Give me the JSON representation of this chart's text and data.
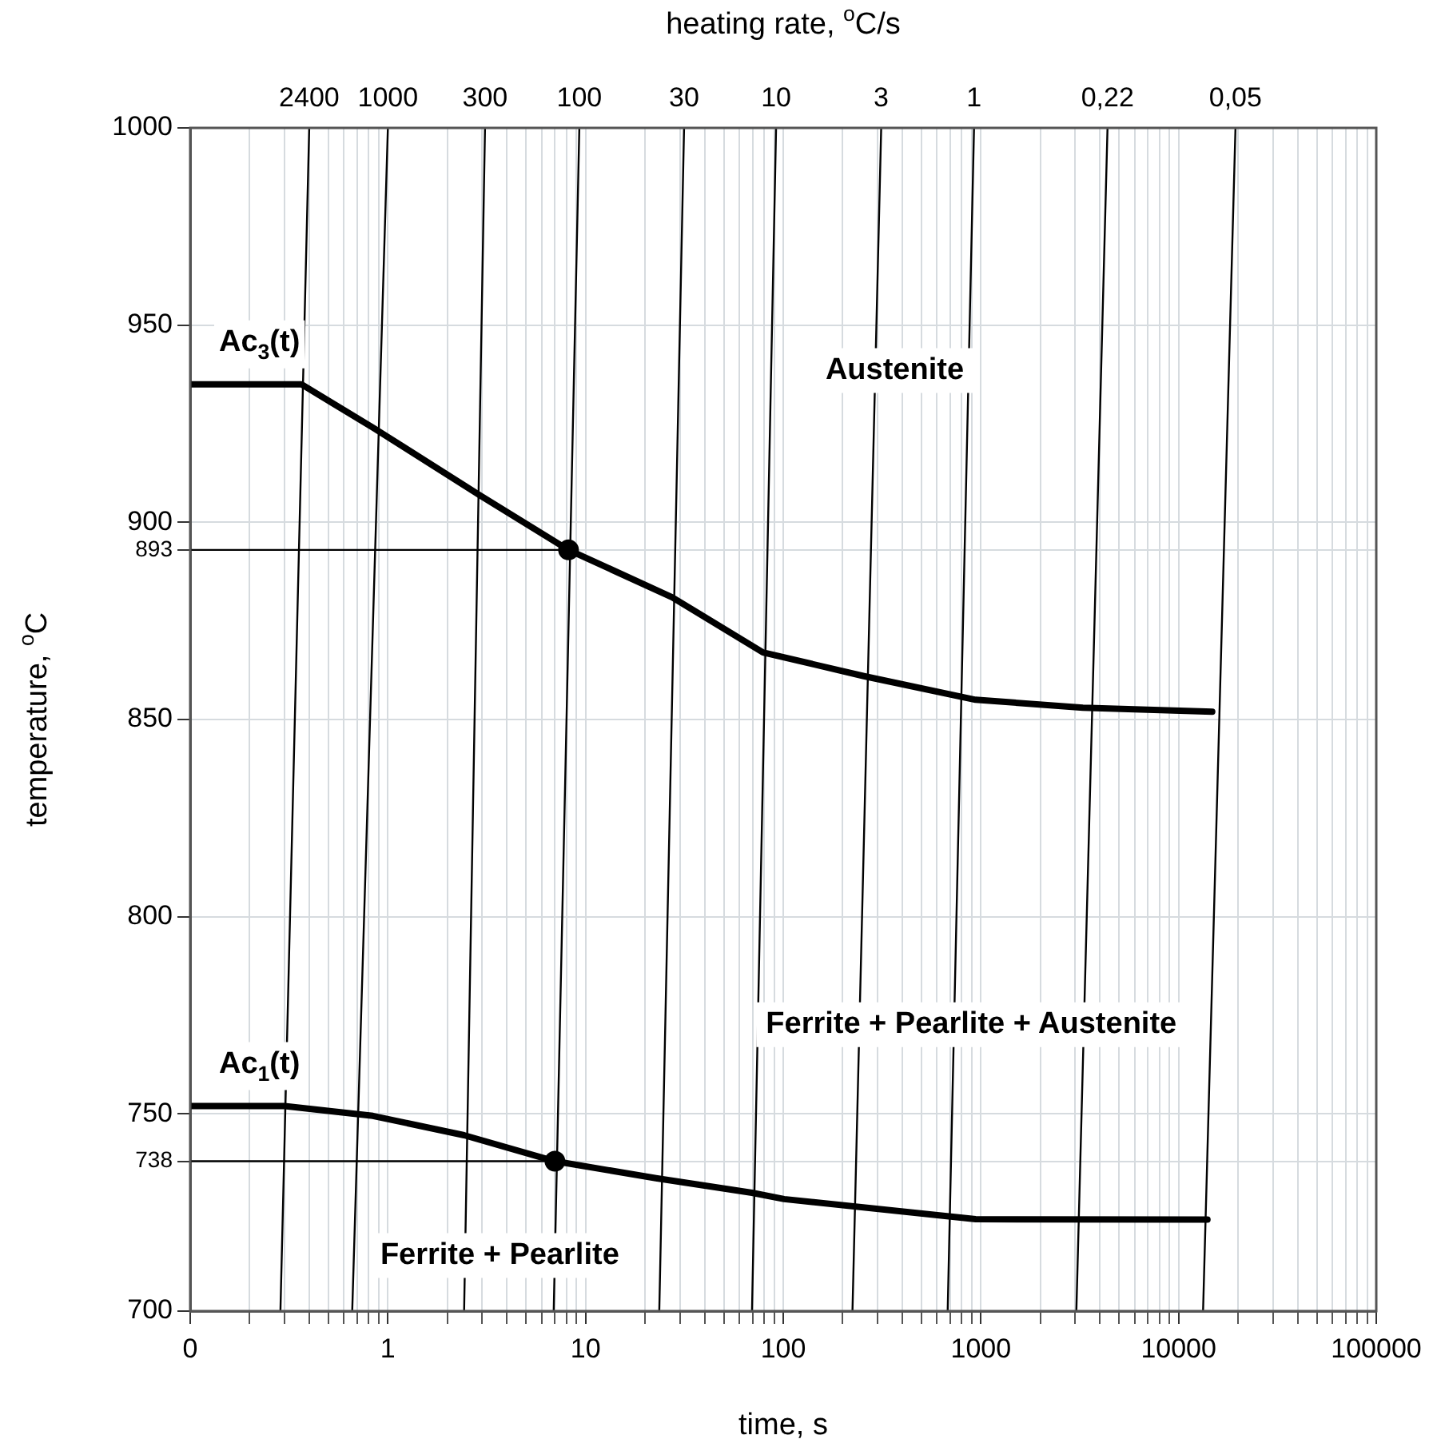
{
  "chart_data": {
    "type": "line",
    "xlabel": "time, s",
    "ylabel": "temperature, $^{o}$C",
    "log": "x",
    "grid": true,
    "legend": false,
    "marker": "none",
    "line_style": "solid",
    "xlim": [
      0.1,
      100000
    ],
    "ylim": [
      700,
      1000
    ],
    "xticks": [
      {
        "value": 0.1,
        "label": "0"
      },
      {
        "value": 0.2,
        "label": null
      },
      {
        "value": 0.3,
        "label": null
      },
      {
        "value": 0.4,
        "label": null
      },
      {
        "value": 0.5,
        "label": null
      },
      {
        "value": 0.6,
        "label": null
      },
      {
        "value": 0.7,
        "label": null
      },
      {
        "value": 0.8,
        "label": null
      },
      {
        "value": 0.9,
        "label": null
      },
      1,
      {
        "value": 2,
        "label": null
      },
      {
        "value": 3,
        "label": null
      },
      {
        "value": 4,
        "label": null
      },
      {
        "value": 5,
        "label": null
      },
      {
        "value": 6,
        "label": null
      },
      {
        "value": 7,
        "label": null
      },
      {
        "value": 8,
        "label": null
      },
      {
        "value": 9,
        "label": null
      },
      10,
      {
        "value": 20,
        "label": null
      },
      {
        "value": 30,
        "label": null
      },
      {
        "value": 40,
        "label": null
      },
      {
        "value": 50,
        "label": null
      },
      {
        "value": 60,
        "label": null
      },
      {
        "value": 70,
        "label": null
      },
      {
        "value": 80,
        "label": null
      },
      {
        "value": 90,
        "label": null
      },
      100,
      {
        "value": 200,
        "label": null
      },
      {
        "value": 300,
        "label": null
      },
      {
        "value": 400,
        "label": null
      },
      {
        "value": 500,
        "label": null
      },
      {
        "value": 600,
        "label": null
      },
      {
        "value": 700,
        "label": null
      },
      {
        "value": 800,
        "label": null
      },
      {
        "value": 900,
        "label": null
      },
      1000,
      {
        "value": 2000,
        "label": null
      },
      {
        "value": 3000,
        "label": null
      },
      {
        "value": 4000,
        "label": null
      },
      {
        "value": 5000,
        "label": null
      },
      {
        "value": 6000,
        "label": null
      },
      {
        "value": 7000,
        "label": null
      },
      {
        "value": 8000,
        "label": null
      },
      {
        "value": 9000,
        "label": null
      },
      10000,
      {
        "value": 20000,
        "label": null
      },
      {
        "value": 30000,
        "label": null
      },
      {
        "value": 40000,
        "label": null
      },
      {
        "value": 50000,
        "label": null
      },
      {
        "value": 60000,
        "label": null
      },
      {
        "value": 70000,
        "label": null
      },
      {
        "value": 80000,
        "label": null
      },
      {
        "value": 90000,
        "label": null
      },
      100000
    ],
    "yticks": [
      700,
      738,
      750,
      800,
      850,
      893,
      900,
      950,
      1000
    ],
    "series": [
      {
        "color": "#000000",
        "x": [
          0.286,
          0.4
        ],
        "values": [
          700,
          1000
        ]
      },
      {
        "color": "#000000",
        "x": [
          0.66,
          1.0
        ],
        "values": [
          700,
          1000
        ]
      },
      {
        "color": "#000000",
        "x": [
          2.43,
          3.1
        ],
        "values": [
          700,
          1000
        ]
      },
      {
        "color": "#000000",
        "x": [
          6.9,
          9.3
        ],
        "values": [
          700,
          1000
        ]
      },
      {
        "color": "#000000",
        "x": [
          23.6,
          31.5
        ],
        "values": [
          700,
          1000
        ]
      },
      {
        "color": "#000000",
        "x": [
          69.5,
          92
        ],
        "values": [
          700,
          1000
        ]
      },
      {
        "color": "#000000",
        "x": [
          224,
          313
        ],
        "values": [
          700,
          1000
        ]
      },
      {
        "color": "#000000",
        "x": [
          679,
          923
        ],
        "values": [
          700,
          1000
        ]
      },
      {
        "color": "#000000",
        "x": [
          3040,
          4370
        ],
        "values": [
          700,
          1000
        ]
      },
      {
        "color": "#000000",
        "x": [
          13300,
          19400
        ],
        "values": [
          700,
          1000
        ]
      },
      {
        "color": "#000000",
        "x": [
          0.1,
          8.2
        ],
        "values": [
          893,
          893
        ]
      },
      {
        "color": "#000000",
        "x": [
          0.1,
          7.0
        ],
        "values": [
          738,
          738
        ]
      },
      {
        "type": "line",
        "name": "Ac$_{3}$(t)",
        "color": "#000000",
        "x": [
          0.1,
          0.365,
          0.84,
          2.89,
          8.2,
          27.4,
          79,
          256,
          940,
          3280,
          14800
        ],
        "values": [
          935,
          935,
          924,
          907,
          893,
          881,
          867,
          861,
          855,
          853,
          852
        ]
      },
      {
        "type": "line",
        "name": "Ac$_{1}$(t)",
        "color": "#000000",
        "x": [
          0.1,
          0.3,
          0.84,
          2.43,
          7.0,
          22.7,
          69.5,
          101,
          940,
          14000
        ],
        "values": [
          752,
          752,
          749.5,
          744.6,
          738,
          733.7,
          730,
          728.4,
          723.3,
          723.2
        ]
      },
      {
        "type": "scatter",
        "marker": "circle",
        "color": "#000000",
        "x": [
          8.2,
          7.0
        ],
        "values": [
          893,
          738
        ]
      }
    ],
    "annotations": [
      "heating rate, $^{o}$C/s",
      "Austenite",
      "Ferrite + Pearlite + Austenite",
      "Ferrite + Pearlite",
      {
        "text": "2400",
        "x": 0.4,
        "y": 1000
      },
      {
        "text": "1000",
        "x": 1.0,
        "y": 1000
      },
      {
        "text": "300",
        "x": 3.1,
        "y": 1000
      },
      {
        "text": "100",
        "x": 9.3,
        "y": 1000
      },
      {
        "text": "30",
        "x": 31.5,
        "y": 1000
      },
      {
        "text": "10",
        "x": 92,
        "y": 1000
      },
      {
        "text": "3",
        "x": 313,
        "y": 1000
      },
      {
        "text": "1",
        "x": 923,
        "y": 1000
      },
      {
        "text": "0,22",
        "x": 4370,
        "y": 1000
      },
      {
        "text": "0,05",
        "x": 19400,
        "y": 1000
      }
    ]
  }
}
